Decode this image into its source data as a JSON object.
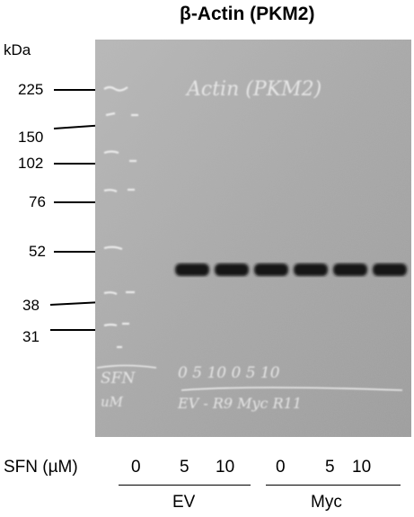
{
  "title": "β-Actin (PKM2)",
  "ladder": {
    "unit": "kDa",
    "markers": [
      {
        "label": "225"
      },
      {
        "label": "150"
      },
      {
        "label": "102"
      },
      {
        "label": "76"
      },
      {
        "label": "52"
      },
      {
        "label": "38"
      },
      {
        "label": "31"
      }
    ]
  },
  "blot": {
    "handwriting_top": "Actin (PKM2)",
    "handwriting_lanes": "0  5 10   0 5  10",
    "handwriting_sfn": "SFN",
    "handwriting_um": "uM",
    "handwriting_groups": "EV - R9   Myc R11",
    "band_count": 6,
    "membrane_color": "#a8a8a8",
    "band_color": "#161616"
  },
  "treatment": {
    "label": "SFN (µM)",
    "doses": [
      "0",
      "5",
      "10",
      "0",
      "5",
      "10"
    ],
    "groups": [
      "EV",
      "Myc"
    ]
  }
}
